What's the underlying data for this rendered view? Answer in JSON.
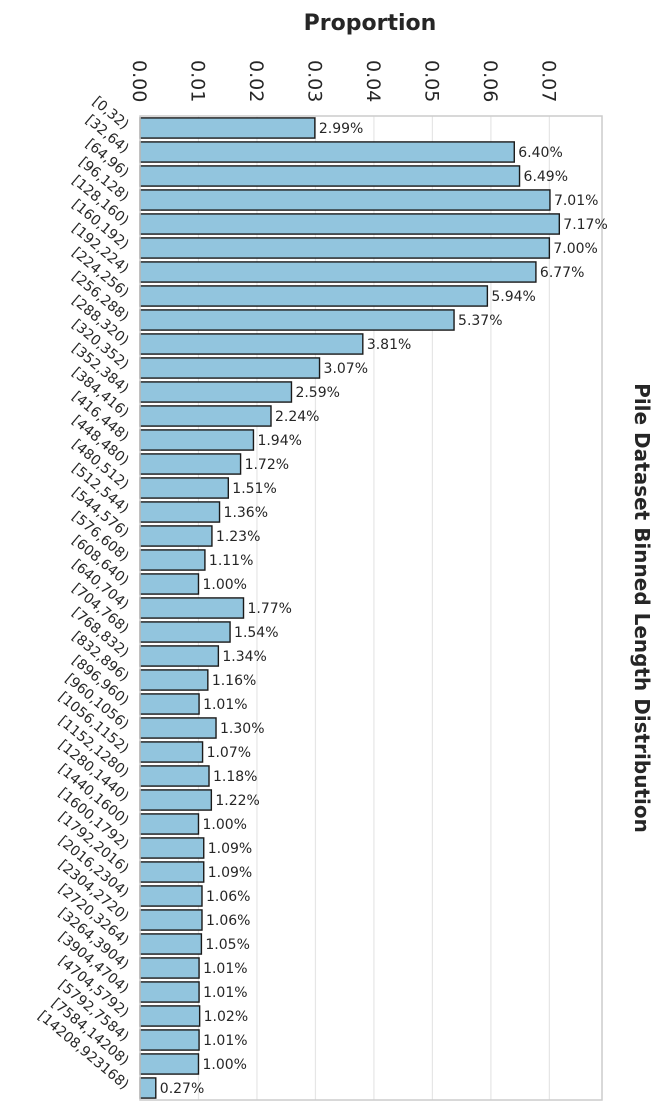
{
  "chart_data": {
    "type": "bar",
    "orientation": "horizontal",
    "title": "Pile Dataset Binned Length Distribution",
    "xlabel": "Proportion",
    "ylabel": "",
    "xlim": [
      0,
      0.079
    ],
    "xticks": [
      "0.00",
      "0.01",
      "0.02",
      "0.03",
      "0.04",
      "0.05",
      "0.06",
      "0.07"
    ],
    "tick_values": [
      0,
      0.01,
      0.02,
      0.03,
      0.04,
      0.05,
      0.06,
      0.07
    ],
    "grid": true,
    "colors": {
      "bar_fill": "#92c5de",
      "bar_edge": "#1a1a1a",
      "grid": "#e6e6e6",
      "frame": "#cccccc",
      "text": "#262626"
    },
    "categories": [
      "[0,32)",
      "[32,64)",
      "[64,96)",
      "[96,128)",
      "[128,160)",
      "[160,192)",
      "[192,224)",
      "[224,256)",
      "[256,288)",
      "[288,320)",
      "[320,352)",
      "[352,384)",
      "[384,416)",
      "[416,448)",
      "[448,480)",
      "[480,512)",
      "[512,544)",
      "[544,576)",
      "[576,608)",
      "[608,640)",
      "[640,704)",
      "[704,768)",
      "[768,832)",
      "[832,896)",
      "[896,960)",
      "[960,1056)",
      "[1056,1152)",
      "[1152,1280)",
      "[1280,1440)",
      "[1440,1600)",
      "[1600,1792)",
      "[1792,2016)",
      "[2016,2304)",
      "[2304,2720)",
      "[2720,3264)",
      "[3264,3904)",
      "[3904,4704)",
      "[4704,5792)",
      "[5792,7584)",
      "[7584,14208)",
      "[14208,923168)"
    ],
    "values": [
      0.0299,
      0.064,
      0.0649,
      0.0701,
      0.0717,
      0.07,
      0.0677,
      0.0594,
      0.0537,
      0.0381,
      0.0307,
      0.0259,
      0.0224,
      0.0194,
      0.0172,
      0.0151,
      0.0136,
      0.0123,
      0.0111,
      0.01,
      0.0177,
      0.0154,
      0.0134,
      0.0116,
      0.0101,
      0.013,
      0.0107,
      0.0118,
      0.0122,
      0.01,
      0.0109,
      0.0109,
      0.0106,
      0.0106,
      0.0105,
      0.0101,
      0.0101,
      0.0102,
      0.0101,
      0.01,
      0.0027
    ],
    "labels": [
      "2.99%",
      "6.40%",
      "6.49%",
      "7.01%",
      "7.17%",
      "7.00%",
      "6.77%",
      "5.94%",
      "5.37%",
      "3.81%",
      "3.07%",
      "2.59%",
      "2.24%",
      "1.94%",
      "1.72%",
      "1.51%",
      "1.36%",
      "1.23%",
      "1.11%",
      "1.00%",
      "1.77%",
      "1.54%",
      "1.34%",
      "1.16%",
      "1.01%",
      "1.30%",
      "1.07%",
      "1.18%",
      "1.22%",
      "1.00%",
      "1.09%",
      "1.09%",
      "1.06%",
      "1.06%",
      "1.05%",
      "1.01%",
      "1.01%",
      "1.02%",
      "1.01%",
      "1.00%",
      "0.27%"
    ]
  }
}
